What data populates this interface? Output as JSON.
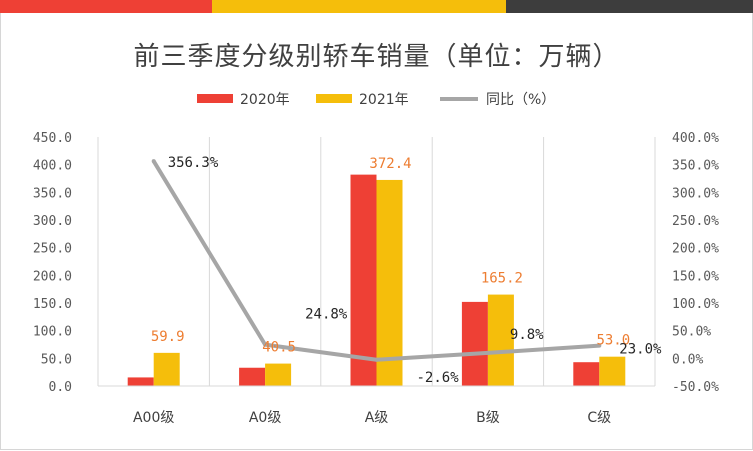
{
  "title": "前三季度分级别轿车销量（单位：万辆）",
  "colors": {
    "s2020": "#EE4035",
    "s2021": "#F5BE0B",
    "line": "#A6A6A6",
    "grid": "#D9D9D9"
  },
  "chart_data": {
    "type": "bar",
    "title": "前三季度分级别轿车销量（单位：万辆）",
    "categories": [
      "A00级",
      "A0级",
      "A级",
      "B级",
      "C级"
    ],
    "series": [
      {
        "name": "2020年",
        "type": "bar",
        "axis": "left",
        "values": [
          15.5,
          33.0,
          382.0,
          152.0,
          43.0
        ]
      },
      {
        "name": "2021年",
        "type": "bar",
        "axis": "left",
        "values": [
          59.9,
          40.5,
          372.4,
          165.2,
          53.0
        ],
        "labels": [
          "59.9",
          "40.5",
          "372.4",
          "165.2",
          "53.0"
        ]
      },
      {
        "name": "同比（%）",
        "type": "line",
        "axis": "right",
        "values": [
          356.3,
          24.8,
          -2.6,
          9.8,
          23.0
        ],
        "labels": [
          "356.3%",
          "24.8%",
          "-2.6%",
          "9.8%",
          "23.0%"
        ]
      }
    ],
    "y_left": {
      "min": 0,
      "max": 450,
      "step": 50,
      "ticks": [
        "0.0",
        "50.0",
        "100.0",
        "150.0",
        "200.0",
        "250.0",
        "300.0",
        "350.0",
        "400.0",
        "450.0"
      ]
    },
    "y_right": {
      "min": -50,
      "max": 400,
      "step": 50,
      "ticks": [
        "-50.0%",
        "0.0%",
        "50.0%",
        "100.0%",
        "150.0%",
        "200.0%",
        "250.0%",
        "300.0%",
        "350.0%",
        "400.0%"
      ]
    },
    "grid": true,
    "legend": "top-center"
  }
}
